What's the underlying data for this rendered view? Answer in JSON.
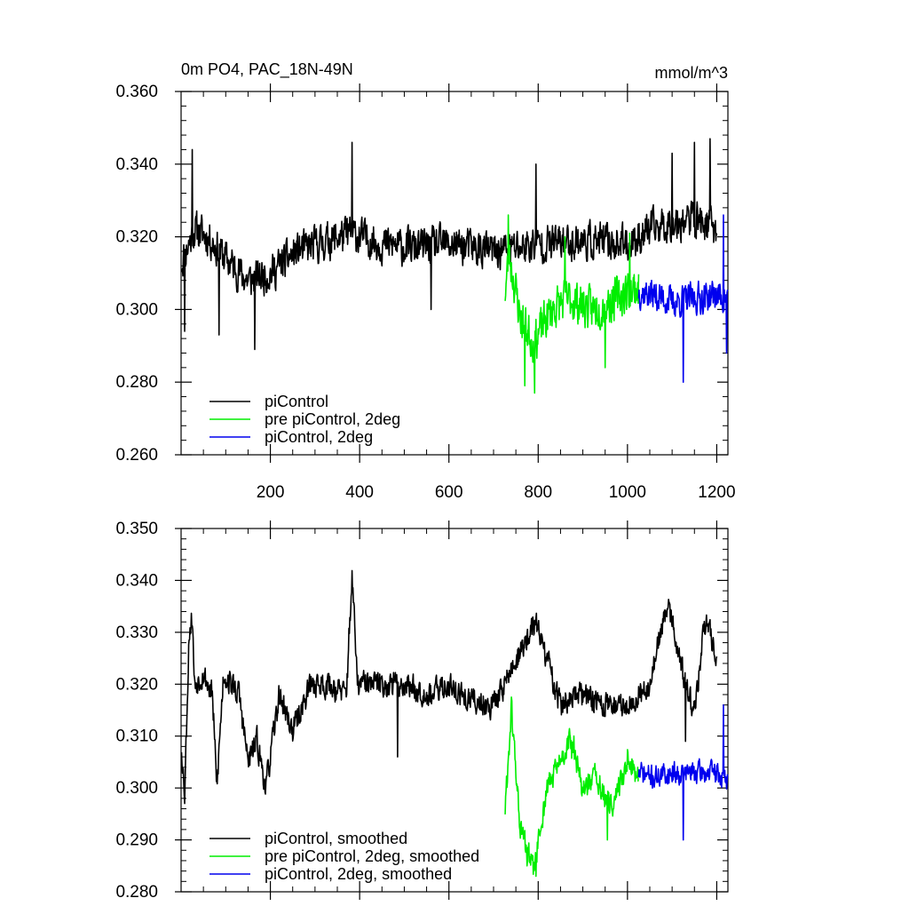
{
  "colors": {
    "piControl": "#000000",
    "pre_piControl_2deg": "#00ee00",
    "piControl_2deg": "#0000ee"
  },
  "chart_data": [
    {
      "type": "line",
      "title": "0m PO4, PAC_18N-49N",
      "units": "mmol/m^3",
      "xlim": [
        0,
        1225
      ],
      "ylim": [
        0.26,
        0.36
      ],
      "xticks": [
        200,
        400,
        600,
        800,
        1000,
        1200
      ],
      "xtick_labels": [
        "200",
        "400",
        "600",
        "800",
        "1000",
        "1200"
      ],
      "yticks": [
        0.26,
        0.28,
        0.3,
        0.32,
        0.34,
        0.36
      ],
      "ytick_labels": [
        "0.260",
        "0.280",
        "0.300",
        "0.320",
        "0.340",
        "0.360"
      ],
      "legend_position": "bottom-left",
      "series": [
        {
          "name": "piControl",
          "color_key": "piControl",
          "x_start": 1,
          "x_end": 1200,
          "base": [
            [
              1,
              0.313
            ],
            [
              30,
              0.322
            ],
            [
              60,
              0.32
            ],
            [
              100,
              0.314
            ],
            [
              150,
              0.308
            ],
            [
              200,
              0.31
            ],
            [
              260,
              0.316
            ],
            [
              330,
              0.319
            ],
            [
              380,
              0.321
            ],
            [
              450,
              0.318
            ],
            [
              520,
              0.317
            ],
            [
              600,
              0.318
            ],
            [
              700,
              0.316
            ],
            [
              800,
              0.318
            ],
            [
              900,
              0.319
            ],
            [
              1000,
              0.318
            ],
            [
              1050,
              0.322
            ],
            [
              1100,
              0.324
            ],
            [
              1150,
              0.325
            ],
            [
              1200,
              0.322
            ]
          ],
          "spikes": [
            [
              8,
              0.294
            ],
            [
              25,
              0.344
            ],
            [
              85,
              0.293
            ],
            [
              165,
              0.289
            ],
            [
              383,
              0.346
            ],
            [
              560,
              0.3
            ],
            [
              795,
              0.34
            ],
            [
              1100,
              0.343
            ],
            [
              1150,
              0.346
            ],
            [
              1185,
              0.347
            ]
          ],
          "noise": 0.007,
          "seed": 11
        },
        {
          "name": "pre piControl, 2deg",
          "color_key": "pre_piControl_2deg",
          "x_start": 726,
          "x_end": 1025,
          "base": [
            [
              726,
              0.305
            ],
            [
              735,
              0.315
            ],
            [
              760,
              0.298
            ],
            [
              790,
              0.291
            ],
            [
              830,
              0.3
            ],
            [
              870,
              0.303
            ],
            [
              920,
              0.3
            ],
            [
              960,
              0.302
            ],
            [
              1000,
              0.305
            ],
            [
              1025,
              0.306
            ]
          ],
          "spikes": [
            [
              733,
              0.326
            ],
            [
              770,
              0.279
            ],
            [
              792,
              0.277
            ],
            [
              860,
              0.32
            ],
            [
              950,
              0.284
            ],
            [
              1005,
              0.321
            ]
          ],
          "noise": 0.008,
          "seed": 23
        },
        {
          "name": "piControl, 2deg",
          "color_key": "piControl_2deg",
          "x_start": 1025,
          "x_end": 1225,
          "base": [
            [
              1025,
              0.305
            ],
            [
              1060,
              0.304
            ],
            [
              1100,
              0.302
            ],
            [
              1150,
              0.303
            ],
            [
              1200,
              0.304
            ],
            [
              1225,
              0.303
            ]
          ],
          "spikes": [
            [
              1125,
              0.28
            ],
            [
              1215,
              0.326
            ],
            [
              1222,
              0.288
            ]
          ],
          "noise": 0.006,
          "seed": 37
        }
      ]
    },
    {
      "type": "line",
      "xlim": [
        0,
        1225
      ],
      "ylim": [
        0.28,
        0.35
      ],
      "xticks": [
        200,
        400,
        600,
        800,
        1000,
        1200
      ],
      "yticks": [
        0.28,
        0.29,
        0.3,
        0.31,
        0.32,
        0.33,
        0.34,
        0.35
      ],
      "ytick_labels": [
        "0.280",
        "0.290",
        "0.300",
        "0.310",
        "0.320",
        "0.330",
        "0.340",
        "0.350"
      ],
      "legend_position": "bottom-left",
      "series": [
        {
          "name": "piControl, smoothed",
          "color_key": "piControl",
          "x_start": 1,
          "x_end": 1200,
          "base": [
            [
              1,
              0.308
            ],
            [
              8,
              0.299
            ],
            [
              18,
              0.33
            ],
            [
              25,
              0.333
            ],
            [
              30,
              0.32
            ],
            [
              50,
              0.322
            ],
            [
              70,
              0.318
            ],
            [
              80,
              0.3
            ],
            [
              95,
              0.322
            ],
            [
              130,
              0.318
            ],
            [
              150,
              0.305
            ],
            [
              170,
              0.309
            ],
            [
              190,
              0.3
            ],
            [
              220,
              0.318
            ],
            [
              250,
              0.311
            ],
            [
              290,
              0.32
            ],
            [
              330,
              0.32
            ],
            [
              370,
              0.318
            ],
            [
              383,
              0.341
            ],
            [
              395,
              0.32
            ],
            [
              450,
              0.32
            ],
            [
              480,
              0.32
            ],
            [
              500,
              0.32
            ],
            [
              560,
              0.318
            ],
            [
              600,
              0.32
            ],
            [
              640,
              0.317
            ],
            [
              700,
              0.316
            ],
            [
              795,
              0.332
            ],
            [
              850,
              0.316
            ],
            [
              900,
              0.318
            ],
            [
              950,
              0.316
            ],
            [
              1000,
              0.316
            ],
            [
              1050,
              0.32
            ],
            [
              1090,
              0.336
            ],
            [
              1130,
              0.32
            ],
            [
              1150,
              0.314
            ],
            [
              1175,
              0.333
            ],
            [
              1200,
              0.324
            ]
          ],
          "spikes": [
            [
              485,
              0.306
            ],
            [
              1130,
              0.309
            ]
          ],
          "noise": 0.0035,
          "seed": 53
        },
        {
          "name": "pre piControl, 2deg, smoothed",
          "color_key": "pre_piControl_2deg",
          "x_start": 726,
          "x_end": 1025,
          "base": [
            [
              726,
              0.296
            ],
            [
              740,
              0.315
            ],
            [
              760,
              0.292
            ],
            [
              790,
              0.284
            ],
            [
              820,
              0.3
            ],
            [
              850,
              0.305
            ],
            [
              870,
              0.309
            ],
            [
              900,
              0.3
            ],
            [
              930,
              0.302
            ],
            [
              960,
              0.296
            ],
            [
              990,
              0.302
            ],
            [
              1000,
              0.306
            ],
            [
              1025,
              0.302
            ]
          ],
          "spikes": [
            [
              775,
              0.285
            ],
            [
              795,
              0.283
            ],
            [
              880,
              0.31
            ],
            [
              955,
              0.29
            ]
          ],
          "noise": 0.0035,
          "seed": 61
        },
        {
          "name": "piControl, 2deg, smoothed",
          "color_key": "piControl_2deg",
          "x_start": 1025,
          "x_end": 1225,
          "base": [
            [
              1025,
              0.303
            ],
            [
              1060,
              0.302
            ],
            [
              1100,
              0.303
            ],
            [
              1150,
              0.303
            ],
            [
              1200,
              0.303
            ],
            [
              1225,
              0.301
            ]
          ],
          "spikes": [
            [
              1125,
              0.29
            ],
            [
              1215,
              0.316
            ]
          ],
          "noise": 0.003,
          "seed": 71
        }
      ]
    }
  ]
}
